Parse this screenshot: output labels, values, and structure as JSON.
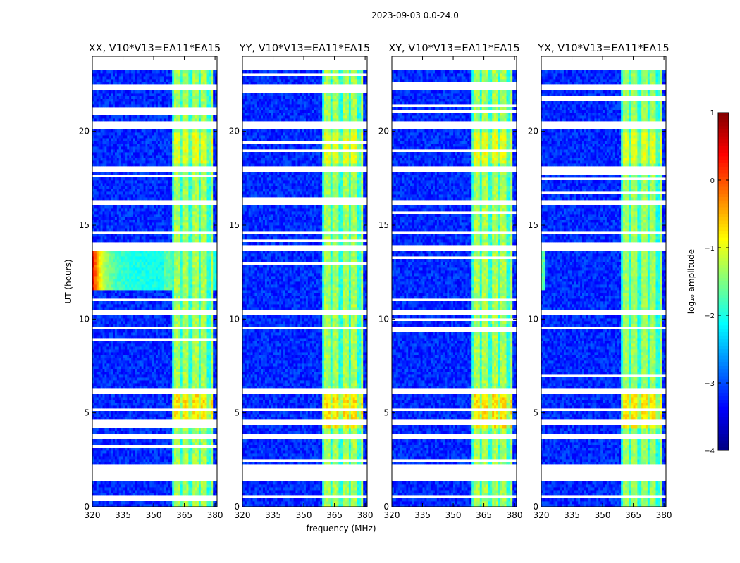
{
  "chart_data": {
    "type": "heatmap",
    "title": "2023-09-03 0.0-24.0",
    "xlabel": "frequency (MHz)",
    "ylabel": "UT (hours)",
    "xlim": [
      320,
      381
    ],
    "ylim": [
      0,
      24
    ],
    "x_ticks": [
      "320",
      "335",
      "350",
      "365",
      "380"
    ],
    "x_tick_values": [
      320,
      335,
      350,
      365,
      380
    ],
    "y_ticks": [
      "0",
      "5",
      "10",
      "15",
      "20"
    ],
    "y_tick_values": [
      0,
      5,
      10,
      15,
      20
    ],
    "panels": [
      {
        "title": "XX, V10*V13=EA11*EA15",
        "rfi_strength": 1.0,
        "strong_event": true
      },
      {
        "title": "YY, V10*V13=EA11*EA15",
        "rfi_strength": 1.0,
        "strong_event": false
      },
      {
        "title": "XY, V10*V13=EA11*EA15",
        "rfi_strength": 1.05,
        "strong_event": false
      },
      {
        "title": "YX, V10*V13=EA11*EA15",
        "rfi_strength": 0.85,
        "strong_event": false
      }
    ],
    "rfi_band_mhz": [
      359,
      360,
      361,
      362,
      363,
      364,
      365,
      366,
      367,
      368,
      369,
      370,
      371,
      372,
      373,
      374,
      375,
      376,
      377,
      378,
      379
    ],
    "flag_gaps_hours": [
      [
        23.25,
        24.0
      ],
      [
        22.2,
        22.45
      ],
      [
        20.1,
        20.6
      ],
      [
        17.8,
        18.2
      ],
      [
        16.0,
        16.3
      ],
      [
        14.5,
        14.7
      ],
      [
        13.65,
        14.0
      ],
      [
        10.2,
        10.45
      ],
      [
        9.4,
        9.55
      ],
      [
        5.95,
        6.25
      ],
      [
        5.05,
        5.25
      ],
      [
        4.3,
        4.6
      ],
      [
        3.6,
        3.9
      ],
      [
        1.4,
        2.3
      ],
      [
        0.5,
        0.65
      ]
    ],
    "colorbar": {
      "label": "log₁₀ amplitude",
      "ticks": [
        "1",
        "0",
        "−1",
        "−2",
        "−3",
        "−4"
      ],
      "tick_values": [
        1,
        0,
        -1,
        -2,
        -3,
        -4
      ],
      "range": [
        -4,
        1
      ],
      "colormap": "jet"
    }
  }
}
